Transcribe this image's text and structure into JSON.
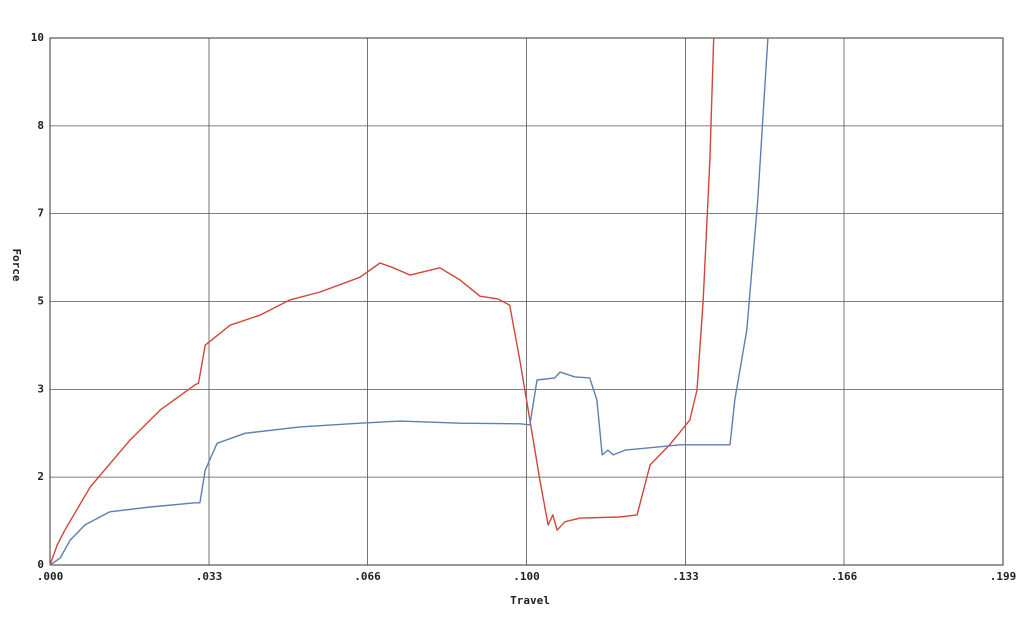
{
  "chart_data": {
    "type": "line",
    "x_label": "Travel",
    "y_label": "Force",
    "xlim": [
      0,
      0.199
    ],
    "xticks": [
      {
        "value": 0,
        "label": ".000"
      },
      {
        "value": 0.0332,
        "label": ".033"
      },
      {
        "value": 0.0663,
        "label": ".066"
      },
      {
        "value": 0.0995,
        "label": ".100"
      },
      {
        "value": 0.1327,
        "label": ".133"
      },
      {
        "value": 0.1658,
        "label": ".166"
      },
      {
        "value": 0.199,
        "label": ".199"
      }
    ],
    "ylim": [
      0,
      10
    ],
    "yticks": [
      0,
      {
        "value": 1.667,
        "label": "2"
      },
      {
        "value": 3.333,
        "label": "3"
      },
      5,
      {
        "value": 6.667,
        "label": "7"
      },
      {
        "value": 8.333,
        "label": "8"
      },
      10
    ],
    "grid": true,
    "series": [
      {
        "color": "#d2453c",
        "x": [
          0,
          0.0015,
          0.0031,
          0.0084,
          0.0167,
          0.023,
          0.0303,
          0.031,
          0.0324,
          0.0376,
          0.0438,
          0.0501,
          0.0564,
          0.0647,
          0.0689,
          0.0714,
          0.0752,
          0.0814,
          0.0856,
          0.0898,
          0.0935,
          0.096,
          0.0981,
          0.1002,
          0.1023,
          0.104,
          0.105,
          0.1059,
          0.1075,
          0.1107,
          0.119,
          0.1226,
          0.1253,
          0.1294,
          0.1336,
          0.1351,
          0.1364,
          0.1378,
          0.1386
        ],
        "values": [
          0,
          0.38,
          0.66,
          1.48,
          2.37,
          2.94,
          3.42,
          3.45,
          4.17,
          4.55,
          4.74,
          5.03,
          5.18,
          5.46,
          5.73,
          5.65,
          5.5,
          5.64,
          5.41,
          5.1,
          5.05,
          4.93,
          3.89,
          2.75,
          1.61,
          0.76,
          0.95,
          0.66,
          0.82,
          0.89,
          0.91,
          0.95,
          1.9,
          2.28,
          2.75,
          3.32,
          5.03,
          7.69,
          10
        ]
      },
      {
        "color": "#5f7fae",
        "x": [
          0,
          0.0021,
          0.0042,
          0.0073,
          0.0125,
          0.0209,
          0.0303,
          0.0313,
          0.0324,
          0.0349,
          0.0407,
          0.0522,
          0.0647,
          0.0731,
          0.0856,
          0.0981,
          0.1002,
          0.1017,
          0.1054,
          0.1065,
          0.1096,
          0.1127,
          0.1142,
          0.1153,
          0.1165,
          0.1176,
          0.1201,
          0.1316,
          0.142,
          0.143,
          0.1455,
          0.1478,
          0.1499
        ],
        "values": [
          0,
          0.13,
          0.47,
          0.76,
          1.01,
          1.1,
          1.18,
          1.18,
          1.8,
          2.31,
          2.5,
          2.62,
          2.69,
          2.73,
          2.69,
          2.68,
          2.66,
          3.51,
          3.55,
          3.66,
          3.57,
          3.55,
          3.13,
          2.09,
          2.18,
          2.09,
          2.18,
          2.28,
          2.28,
          3.13,
          4.46,
          6.93,
          10
        ]
      }
    ]
  }
}
